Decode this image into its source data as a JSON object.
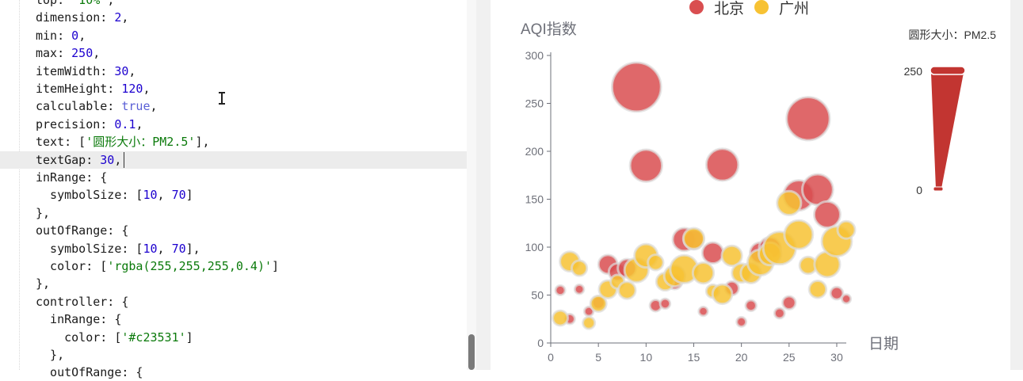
{
  "editor": {
    "lines": [
      {
        "text": "top: '10%',",
        "tokens": [
          {
            "t": "top: "
          },
          {
            "t": "'10%'",
            "c": "str"
          },
          {
            "t": ","
          }
        ]
      },
      {
        "text": "dimension: 2,",
        "tokens": [
          {
            "t": "dimension: "
          },
          {
            "t": "2",
            "c": "num"
          },
          {
            "t": ","
          }
        ]
      },
      {
        "text": "min: 0,",
        "tokens": [
          {
            "t": "min: "
          },
          {
            "t": "0",
            "c": "num"
          },
          {
            "t": ","
          }
        ]
      },
      {
        "text": "max: 250,",
        "tokens": [
          {
            "t": "max: "
          },
          {
            "t": "250",
            "c": "num"
          },
          {
            "t": ","
          }
        ]
      },
      {
        "text": "itemWidth: 30,",
        "tokens": [
          {
            "t": "itemWidth: "
          },
          {
            "t": "30",
            "c": "num"
          },
          {
            "t": ","
          }
        ]
      },
      {
        "text": "itemHeight: 120,",
        "tokens": [
          {
            "t": "itemHeight: "
          },
          {
            "t": "120",
            "c": "num"
          },
          {
            "t": ","
          }
        ]
      },
      {
        "text": "calculable: true,",
        "tokens": [
          {
            "t": "calculable: "
          },
          {
            "t": "true",
            "c": "bool"
          },
          {
            "t": ","
          }
        ]
      },
      {
        "text": "precision: 0.1,",
        "tokens": [
          {
            "t": "precision: "
          },
          {
            "t": "0.1",
            "c": "num"
          },
          {
            "t": ","
          }
        ]
      },
      {
        "text": "text: ['圆形大小：PM2.5'],",
        "tokens": [
          {
            "t": "text: ["
          },
          {
            "t": "'圆形大小：PM2.5'",
            "c": "str"
          },
          {
            "t": "],"
          }
        ]
      },
      {
        "text": "textGap: 30,",
        "active": true,
        "tokens": [
          {
            "t": "textGap: "
          },
          {
            "t": "30",
            "c": "num"
          },
          {
            "t": ","
          }
        ]
      },
      {
        "text": "inRange: {",
        "tokens": [
          {
            "t": "inRange: {"
          }
        ]
      },
      {
        "text": "  symbolSize: [10, 70]",
        "tokens": [
          {
            "t": "  symbolSize: ["
          },
          {
            "t": "10",
            "c": "num"
          },
          {
            "t": ", "
          },
          {
            "t": "70",
            "c": "num"
          },
          {
            "t": "]"
          }
        ]
      },
      {
        "text": "},",
        "tokens": [
          {
            "t": "},"
          }
        ]
      },
      {
        "text": "outOfRange: {",
        "tokens": [
          {
            "t": "outOfRange: {"
          }
        ]
      },
      {
        "text": "  symbolSize: [10, 70],",
        "tokens": [
          {
            "t": "  symbolSize: ["
          },
          {
            "t": "10",
            "c": "num"
          },
          {
            "t": ", "
          },
          {
            "t": "70",
            "c": "num"
          },
          {
            "t": "],"
          }
        ]
      },
      {
        "text": "  color: ['rgba(255,255,255,0.4)']",
        "tokens": [
          {
            "t": "  color: ["
          },
          {
            "t": "'rgba(255,255,255,0.4)'",
            "c": "str"
          },
          {
            "t": "]"
          }
        ]
      },
      {
        "text": "},",
        "tokens": [
          {
            "t": "},"
          }
        ]
      },
      {
        "text": "controller: {",
        "tokens": [
          {
            "t": "controller: {"
          }
        ]
      },
      {
        "text": "  inRange: {",
        "tokens": [
          {
            "t": "  inRange: {"
          }
        ]
      },
      {
        "text": "    color: ['#c23531']",
        "tokens": [
          {
            "t": "    color: ["
          },
          {
            "t": "'#c23531'",
            "c": "str"
          },
          {
            "t": "]"
          }
        ]
      },
      {
        "text": "  },",
        "tokens": [
          {
            "t": "  },"
          }
        ]
      },
      {
        "text": "  outOfRange: {",
        "tokens": [
          {
            "t": "  outOfRange: {"
          }
        ]
      }
    ]
  },
  "colors": {
    "beijing": "#d94e50",
    "guangzhou": "#f7c233",
    "controller": "#c23531",
    "axis": "#6e7079",
    "grid": "#e0e6f1"
  },
  "chart_data": {
    "type": "scatter",
    "legend": [
      "北京",
      "广州"
    ],
    "legend_position": "top-center",
    "ylabel": "AQI指数",
    "xlabel": "日期",
    "xlim": [
      0,
      31
    ],
    "ylim": [
      0,
      300
    ],
    "x_ticks": [
      "0",
      "5",
      "10",
      "15",
      "20",
      "25",
      "30"
    ],
    "y_ticks": [
      "0",
      "50",
      "100",
      "150",
      "200",
      "250",
      "300"
    ],
    "visual_map": {
      "text": "圆形大小：PM2.5",
      "max_label": "250",
      "min_label": "0",
      "min": 0,
      "max": 250
    },
    "series": [
      {
        "name": "北京",
        "points": [
          [
            1,
            55,
            9
          ],
          [
            2,
            25,
            11
          ],
          [
            3,
            56,
            7
          ],
          [
            4,
            33,
            7
          ],
          [
            5,
            42,
            24
          ],
          [
            6,
            82,
            58
          ],
          [
            7,
            74,
            49
          ],
          [
            8,
            78,
            55
          ],
          [
            9,
            267,
            216
          ],
          [
            10,
            185,
            127
          ],
          [
            11,
            39,
            19
          ],
          [
            12,
            41,
            11
          ],
          [
            13,
            64,
            38
          ],
          [
            14,
            108,
            79
          ],
          [
            15,
            108,
            63
          ],
          [
            16,
            33,
            6
          ],
          [
            17,
            94,
            69
          ],
          [
            18,
            186,
            127
          ],
          [
            19,
            57,
            31
          ],
          [
            20,
            22,
            8
          ],
          [
            21,
            39,
            15
          ],
          [
            22,
            94,
            69
          ],
          [
            23,
            99,
            73
          ],
          [
            24,
            31,
            12
          ],
          [
            25,
            42,
            27
          ],
          [
            26,
            154,
            117
          ],
          [
            27,
            234,
            185
          ],
          [
            28,
            160,
            120
          ],
          [
            29,
            134,
            96
          ],
          [
            30,
            52,
            24
          ],
          [
            31,
            46,
            5
          ]
        ]
      },
      {
        "name": "广州",
        "points": [
          [
            1,
            26,
            37
          ],
          [
            2,
            85,
            62
          ],
          [
            3,
            78,
            38
          ],
          [
            4,
            21,
            21
          ],
          [
            5,
            41,
            42
          ],
          [
            6,
            56,
            52
          ],
          [
            7,
            64,
            30
          ],
          [
            8,
            55,
            48
          ],
          [
            9,
            76,
            85
          ],
          [
            10,
            91,
            81
          ],
          [
            11,
            84,
            39
          ],
          [
            12,
            64,
            51
          ],
          [
            13,
            70,
            69
          ],
          [
            14,
            77,
            105
          ],
          [
            15,
            109,
            68
          ],
          [
            16,
            73,
            68
          ],
          [
            17,
            54,
            27
          ],
          [
            18,
            51,
            61
          ],
          [
            19,
            91,
            64
          ],
          [
            20,
            73,
            58
          ],
          [
            21,
            73,
            65
          ],
          [
            22,
            84,
            94
          ],
          [
            23,
            93,
            77
          ],
          [
            24,
            99,
            130
          ],
          [
            25,
            146,
            84
          ],
          [
            26,
            113,
            108
          ],
          [
            27,
            81,
            48
          ],
          [
            28,
            56,
            48
          ],
          [
            29,
            82,
            92
          ],
          [
            30,
            106,
            116
          ],
          [
            31,
            118,
            50
          ]
        ]
      }
    ]
  }
}
